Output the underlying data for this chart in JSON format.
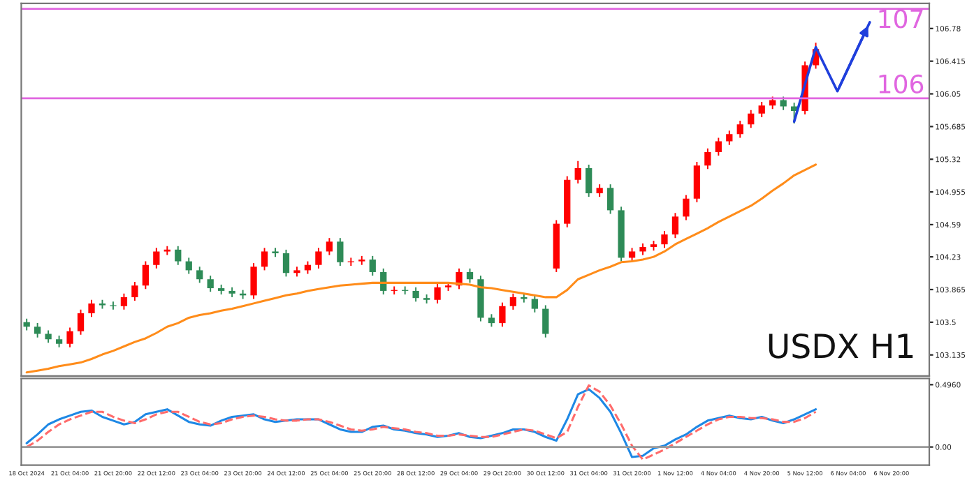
{
  "chart_data": [
    {
      "type": "candlestick",
      "tick_labels": "y",
      "grid": false,
      "categories": [
        null,
        null,
        null,
        null,
        null,
        null,
        null,
        null,
        null,
        null,
        null,
        null,
        null,
        null,
        null,
        null,
        null,
        null,
        null,
        null,
        null,
        null,
        null,
        null,
        null,
        null,
        null,
        null,
        null,
        null,
        null,
        null,
        null,
        null,
        null,
        null,
        null,
        null,
        null,
        null,
        null,
        null,
        null,
        null,
        null,
        null,
        null,
        null,
        null,
        null,
        null,
        null,
        null,
        null,
        null,
        null,
        null,
        null,
        null,
        null,
        null,
        null,
        null,
        null,
        null,
        null,
        null,
        null,
        null,
        null,
        null,
        null,
        null,
        null,
        null,
        null,
        null,
        null,
        null,
        null,
        null,
        null,
        null,
        null
      ],
      "ohlc": [
        [
          103.5,
          103.54,
          103.41,
          103.45
        ],
        [
          103.45,
          103.49,
          103.33,
          103.37
        ],
        [
          103.37,
          103.41,
          103.27,
          103.31
        ],
        [
          103.31,
          103.35,
          103.22,
          103.26
        ],
        [
          103.26,
          103.44,
          103.22,
          103.4
        ],
        [
          103.4,
          103.64,
          103.36,
          103.6
        ],
        [
          103.6,
          103.75,
          103.56,
          103.71
        ],
        [
          103.71,
          103.75,
          103.65,
          103.69
        ],
        [
          103.69,
          103.73,
          103.64,
          103.68
        ],
        [
          103.68,
          103.82,
          103.64,
          103.78
        ],
        [
          103.78,
          103.95,
          103.74,
          103.91
        ],
        [
          103.91,
          104.18,
          103.87,
          104.14
        ],
        [
          104.14,
          104.33,
          104.1,
          104.29
        ],
        [
          104.29,
          104.35,
          104.25,
          104.31
        ],
        [
          104.31,
          104.35,
          104.14,
          104.18
        ],
        [
          104.18,
          104.22,
          104.04,
          104.08
        ],
        [
          104.08,
          104.12,
          103.94,
          103.98
        ],
        [
          103.98,
          104.02,
          103.84,
          103.88
        ],
        [
          103.88,
          103.92,
          103.81,
          103.85
        ],
        [
          103.85,
          103.89,
          103.78,
          103.82
        ],
        [
          103.82,
          103.86,
          103.76,
          103.8
        ],
        [
          103.8,
          104.16,
          103.76,
          104.12
        ],
        [
          104.12,
          104.33,
          104.08,
          104.29
        ],
        [
          104.29,
          104.33,
          104.23,
          104.27
        ],
        [
          104.27,
          104.31,
          104.01,
          104.05
        ],
        [
          104.05,
          104.12,
          104.01,
          104.08
        ],
        [
          104.08,
          104.18,
          104.04,
          104.14
        ],
        [
          104.14,
          104.33,
          104.1,
          104.29
        ],
        [
          104.29,
          104.44,
          104.25,
          104.4
        ],
        [
          104.4,
          104.44,
          104.13,
          104.17
        ],
        [
          104.17,
          104.22,
          104.13,
          104.18
        ],
        [
          104.18,
          104.24,
          104.14,
          104.2
        ],
        [
          104.2,
          104.24,
          104.02,
          104.06
        ],
        [
          104.06,
          104.1,
          103.81,
          103.85
        ],
        [
          103.85,
          103.9,
          103.81,
          103.86
        ],
        [
          103.86,
          103.9,
          103.81,
          103.85
        ],
        [
          103.85,
          103.89,
          103.73,
          103.77
        ],
        [
          103.77,
          103.81,
          103.71,
          103.75
        ],
        [
          103.75,
          103.93,
          103.71,
          103.89
        ],
        [
          103.89,
          103.95,
          103.85,
          103.91
        ],
        [
          103.91,
          104.1,
          103.87,
          104.06
        ],
        [
          104.06,
          104.1,
          103.94,
          103.98
        ],
        [
          103.98,
          104.02,
          103.51,
          103.55
        ],
        [
          103.55,
          103.59,
          103.45,
          103.49
        ],
        [
          103.49,
          103.72,
          103.45,
          103.68
        ],
        [
          103.68,
          103.82,
          103.64,
          103.78
        ],
        [
          103.78,
          103.82,
          103.72,
          103.76
        ],
        [
          103.76,
          103.8,
          103.61,
          103.65
        ],
        [
          103.65,
          103.69,
          103.33,
          103.37
        ],
        [
          104.1,
          104.64,
          104.06,
          104.6
        ],
        [
          104.6,
          105.13,
          104.56,
          105.09
        ],
        [
          105.09,
          105.3,
          105.05,
          105.22
        ],
        [
          105.22,
          105.26,
          104.9,
          104.94
        ],
        [
          104.94,
          105.04,
          104.9,
          105.0
        ],
        [
          105.0,
          105.04,
          104.71,
          104.75
        ],
        [
          104.75,
          104.79,
          104.18,
          104.22
        ],
        [
          104.22,
          104.33,
          104.18,
          104.29
        ],
        [
          104.29,
          104.38,
          104.25,
          104.34
        ],
        [
          104.34,
          104.41,
          104.3,
          104.37
        ],
        [
          104.37,
          104.52,
          104.33,
          104.48
        ],
        [
          104.48,
          104.72,
          104.44,
          104.68
        ],
        [
          104.68,
          104.92,
          104.64,
          104.88
        ],
        [
          104.88,
          105.29,
          104.84,
          105.25
        ],
        [
          105.25,
          105.44,
          105.21,
          105.4
        ],
        [
          105.4,
          105.56,
          105.36,
          105.52
        ],
        [
          105.52,
          105.64,
          105.48,
          105.6
        ],
        [
          105.6,
          105.75,
          105.56,
          105.71
        ],
        [
          105.71,
          105.87,
          105.67,
          105.83
        ],
        [
          105.83,
          105.96,
          105.79,
          105.92
        ],
        [
          105.92,
          106.02,
          105.88,
          105.98
        ],
        [
          105.98,
          106.02,
          105.87,
          105.91
        ],
        [
          105.91,
          105.95,
          105.72,
          105.86
        ],
        [
          105.86,
          106.41,
          105.82,
          106.37
        ],
        [
          106.37,
          106.62,
          106.33,
          106.55
        ],
        null,
        null,
        null,
        null,
        null,
        null,
        null,
        null,
        null,
        null
      ],
      "colors": [
        "#2e8b57",
        "#2e8b57",
        "#2e8b57",
        "#2e8b57",
        "#ff0000",
        "#ff0000",
        "#ff0000",
        "#2e8b57",
        "#2e8b57",
        "#ff0000",
        "#ff0000",
        "#ff0000",
        "#ff0000",
        "#ff0000",
        "#2e8b57",
        "#2e8b57",
        "#2e8b57",
        "#2e8b57",
        "#2e8b57",
        "#2e8b57",
        "#2e8b57",
        "#ff0000",
        "#ff0000",
        "#2e8b57",
        "#2e8b57",
        "#ff0000",
        "#ff0000",
        "#ff0000",
        "#ff0000",
        "#2e8b57",
        "#ff0000",
        "#ff0000",
        "#2e8b57",
        "#2e8b57",
        "#ff0000",
        "#2e8b57",
        "#2e8b57",
        "#2e8b57",
        "#ff0000",
        "#ff0000",
        "#ff0000",
        "#2e8b57",
        "#2e8b57",
        "#2e8b57",
        "#ff0000",
        "#ff0000",
        "#2e8b57",
        "#2e8b57",
        "#2e8b57",
        "#ff0000",
        "#ff0000",
        "#ff0000",
        "#2e8b57",
        "#ff0000",
        "#2e8b57",
        "#2e8b57",
        "#ff0000",
        "#ff0000",
        "#ff0000",
        "#ff0000",
        "#ff0000",
        "#ff0000",
        "#ff0000",
        "#ff0000",
        "#ff0000",
        "#ff0000",
        "#ff0000",
        "#ff0000",
        "#ff0000",
        "#ff0000",
        "#2e8b57",
        "#2e8b57",
        "#ff0000",
        "#ff0000",
        null,
        null,
        null,
        null,
        null,
        null,
        null,
        null,
        null,
        null
      ],
      "series": [
        {
          "type": "line",
          "color": "#ff8c1a",
          "line_style": "solid",
          "values": [
            102.94,
            102.96,
            102.98,
            103.01,
            103.03,
            103.05,
            103.09,
            103.14,
            103.18,
            103.23,
            103.28,
            103.32,
            103.38,
            103.45,
            103.49,
            103.55,
            103.58,
            103.6,
            103.63,
            103.65,
            103.68,
            103.71,
            103.74,
            103.77,
            103.8,
            103.82,
            103.85,
            103.87,
            103.89,
            103.91,
            103.92,
            103.93,
            103.94,
            103.94,
            103.94,
            103.94,
            103.94,
            103.94,
            103.94,
            103.94,
            103.93,
            103.92,
            103.89,
            103.88,
            103.86,
            103.84,
            103.82,
            103.8,
            103.78,
            103.78,
            103.86,
            103.98,
            104.03,
            104.08,
            104.12,
            104.17,
            104.18,
            104.2,
            104.23,
            104.29,
            104.37,
            104.43,
            104.49,
            104.55,
            104.62,
            104.68,
            104.74,
            104.8,
            104.88,
            104.97,
            105.05,
            105.14,
            105.2,
            105.26,
            null,
            null,
            null,
            null,
            null,
            null,
            null,
            null,
            null,
            null
          ]
        },
        {
          "type": "line",
          "color": "#1f3fdc",
          "line_style": "solid",
          "values": [
            null,
            null,
            null,
            null,
            null,
            null,
            null,
            null,
            null,
            null,
            null,
            null,
            null,
            null,
            null,
            null,
            null,
            null,
            null,
            null,
            null,
            null,
            null,
            null,
            null,
            null,
            null,
            null,
            null,
            null,
            null,
            null,
            null,
            null,
            null,
            null,
            null,
            null,
            null,
            null,
            null,
            null,
            null,
            null,
            null,
            null,
            null,
            null,
            null,
            null,
            null,
            null,
            null,
            null,
            null,
            null,
            null,
            null,
            null,
            null,
            null,
            null,
            null,
            null,
            null,
            null,
            null,
            null,
            null,
            null,
            null,
            105.74,
            null,
            106.57,
            null,
            106.08,
            null,
            null,
            106.85,
            null,
            null,
            null,
            null,
            null
          ]
        }
      ],
      "ylim": [
        102.9,
        107.06
      ],
      "yticks": [
        106.78,
        106.415,
        106.05,
        105.685,
        105.32,
        104.955,
        104.59,
        104.23,
        103.865,
        103.5,
        103.135
      ],
      "ref_lines": [
        {
          "axis": "y",
          "value": 107,
          "label": "107",
          "color": "#e066e0",
          "line_style": "solid"
        },
        {
          "axis": "y",
          "value": 106,
          "label": "106",
          "color": "#e066e0",
          "line_style": "solid"
        }
      ],
      "annotations": [
        "USDX H1"
      ]
    },
    {
      "type": "line",
      "grid": false,
      "categories": [
        "18 Oct 2024",
        null,
        null,
        null,
        "21 Oct 04:00",
        null,
        null,
        null,
        "21 Oct 20:00",
        null,
        null,
        null,
        "22 Oct 12:00",
        null,
        null,
        null,
        "23 Oct 04:00",
        null,
        null,
        null,
        "23 Oct 20:00",
        null,
        null,
        null,
        "24 Oct 12:00",
        null,
        null,
        null,
        "25 Oct 04:00",
        null,
        null,
        null,
        "25 Oct 20:00",
        null,
        null,
        null,
        "28 Oct 12:00",
        null,
        null,
        null,
        "29 Oct 04:00",
        null,
        null,
        null,
        "29 Oct 20:00",
        null,
        null,
        null,
        "30 Oct 12:00",
        null,
        null,
        null,
        "31 Oct 04:00",
        null,
        null,
        null,
        "31 Oct 20:00",
        null,
        null,
        null,
        "1 Nov 12:00",
        null,
        null,
        null,
        "4 Nov 04:00",
        null,
        null,
        null,
        "4 Nov 20:00",
        null,
        null,
        null,
        "5 Nov 12:00",
        null,
        null,
        null,
        "6 Nov 04:00",
        null,
        null,
        null,
        "6 Nov 20:00",
        null,
        null,
        null
      ],
      "series": [
        {
          "color": "#1e88e5",
          "line_style": "solid",
          "values": [
            0.03,
            0.1,
            0.18,
            0.22,
            0.25,
            0.28,
            0.29,
            0.24,
            0.21,
            0.18,
            0.2,
            0.26,
            0.28,
            0.3,
            0.25,
            0.2,
            0.18,
            0.17,
            0.21,
            0.24,
            0.25,
            0.26,
            0.22,
            0.2,
            0.21,
            0.22,
            0.22,
            0.22,
            0.18,
            0.14,
            0.12,
            0.12,
            0.16,
            0.17,
            0.14,
            0.13,
            0.11,
            0.1,
            0.08,
            0.09,
            0.11,
            0.08,
            0.07,
            0.09,
            0.11,
            0.14,
            0.14,
            0.12,
            0.08,
            0.05,
            0.22,
            0.42,
            0.46,
            0.39,
            0.28,
            0.11,
            -0.08,
            -0.07,
            -0.01,
            0.01,
            0.06,
            0.1,
            0.16,
            0.21,
            0.23,
            0.25,
            0.23,
            0.22,
            0.24,
            0.21,
            0.19,
            0.22,
            0.26,
            0.3,
            null,
            null,
            null,
            null,
            null,
            null,
            null,
            null,
            null,
            null
          ]
        },
        {
          "color": "#ff6b6b",
          "line_style": "dashed",
          "values": [
            0.0,
            0.05,
            0.12,
            0.18,
            0.22,
            0.25,
            0.28,
            0.28,
            0.24,
            0.21,
            0.19,
            0.22,
            0.26,
            0.28,
            0.28,
            0.24,
            0.2,
            0.18,
            0.19,
            0.22,
            0.24,
            0.25,
            0.24,
            0.22,
            0.21,
            0.21,
            0.22,
            0.22,
            0.2,
            0.17,
            0.14,
            0.13,
            0.14,
            0.16,
            0.15,
            0.14,
            0.12,
            0.11,
            0.09,
            0.09,
            0.1,
            0.09,
            0.08,
            0.08,
            0.1,
            0.12,
            0.14,
            0.13,
            0.1,
            0.07,
            0.12,
            0.32,
            0.49,
            0.44,
            0.33,
            0.18,
            0.01,
            -0.1,
            -0.06,
            -0.02,
            0.03,
            0.08,
            0.13,
            0.18,
            0.22,
            0.24,
            0.24,
            0.23,
            0.23,
            0.22,
            0.2,
            0.2,
            0.23,
            0.28,
            null,
            null,
            null,
            null,
            null,
            null,
            null,
            null,
            null,
            null
          ]
        }
      ],
      "ylim": [
        -0.144,
        0.546
      ],
      "yticks": [
        {
          "value": 0,
          "label": "0.00"
        },
        {
          "value": 0.496,
          "label": "0.4960"
        }
      ],
      "ref_lines": [
        {
          "axis": "y",
          "value": 0,
          "color": "#999999",
          "line_style": "solid"
        }
      ]
    }
  ]
}
